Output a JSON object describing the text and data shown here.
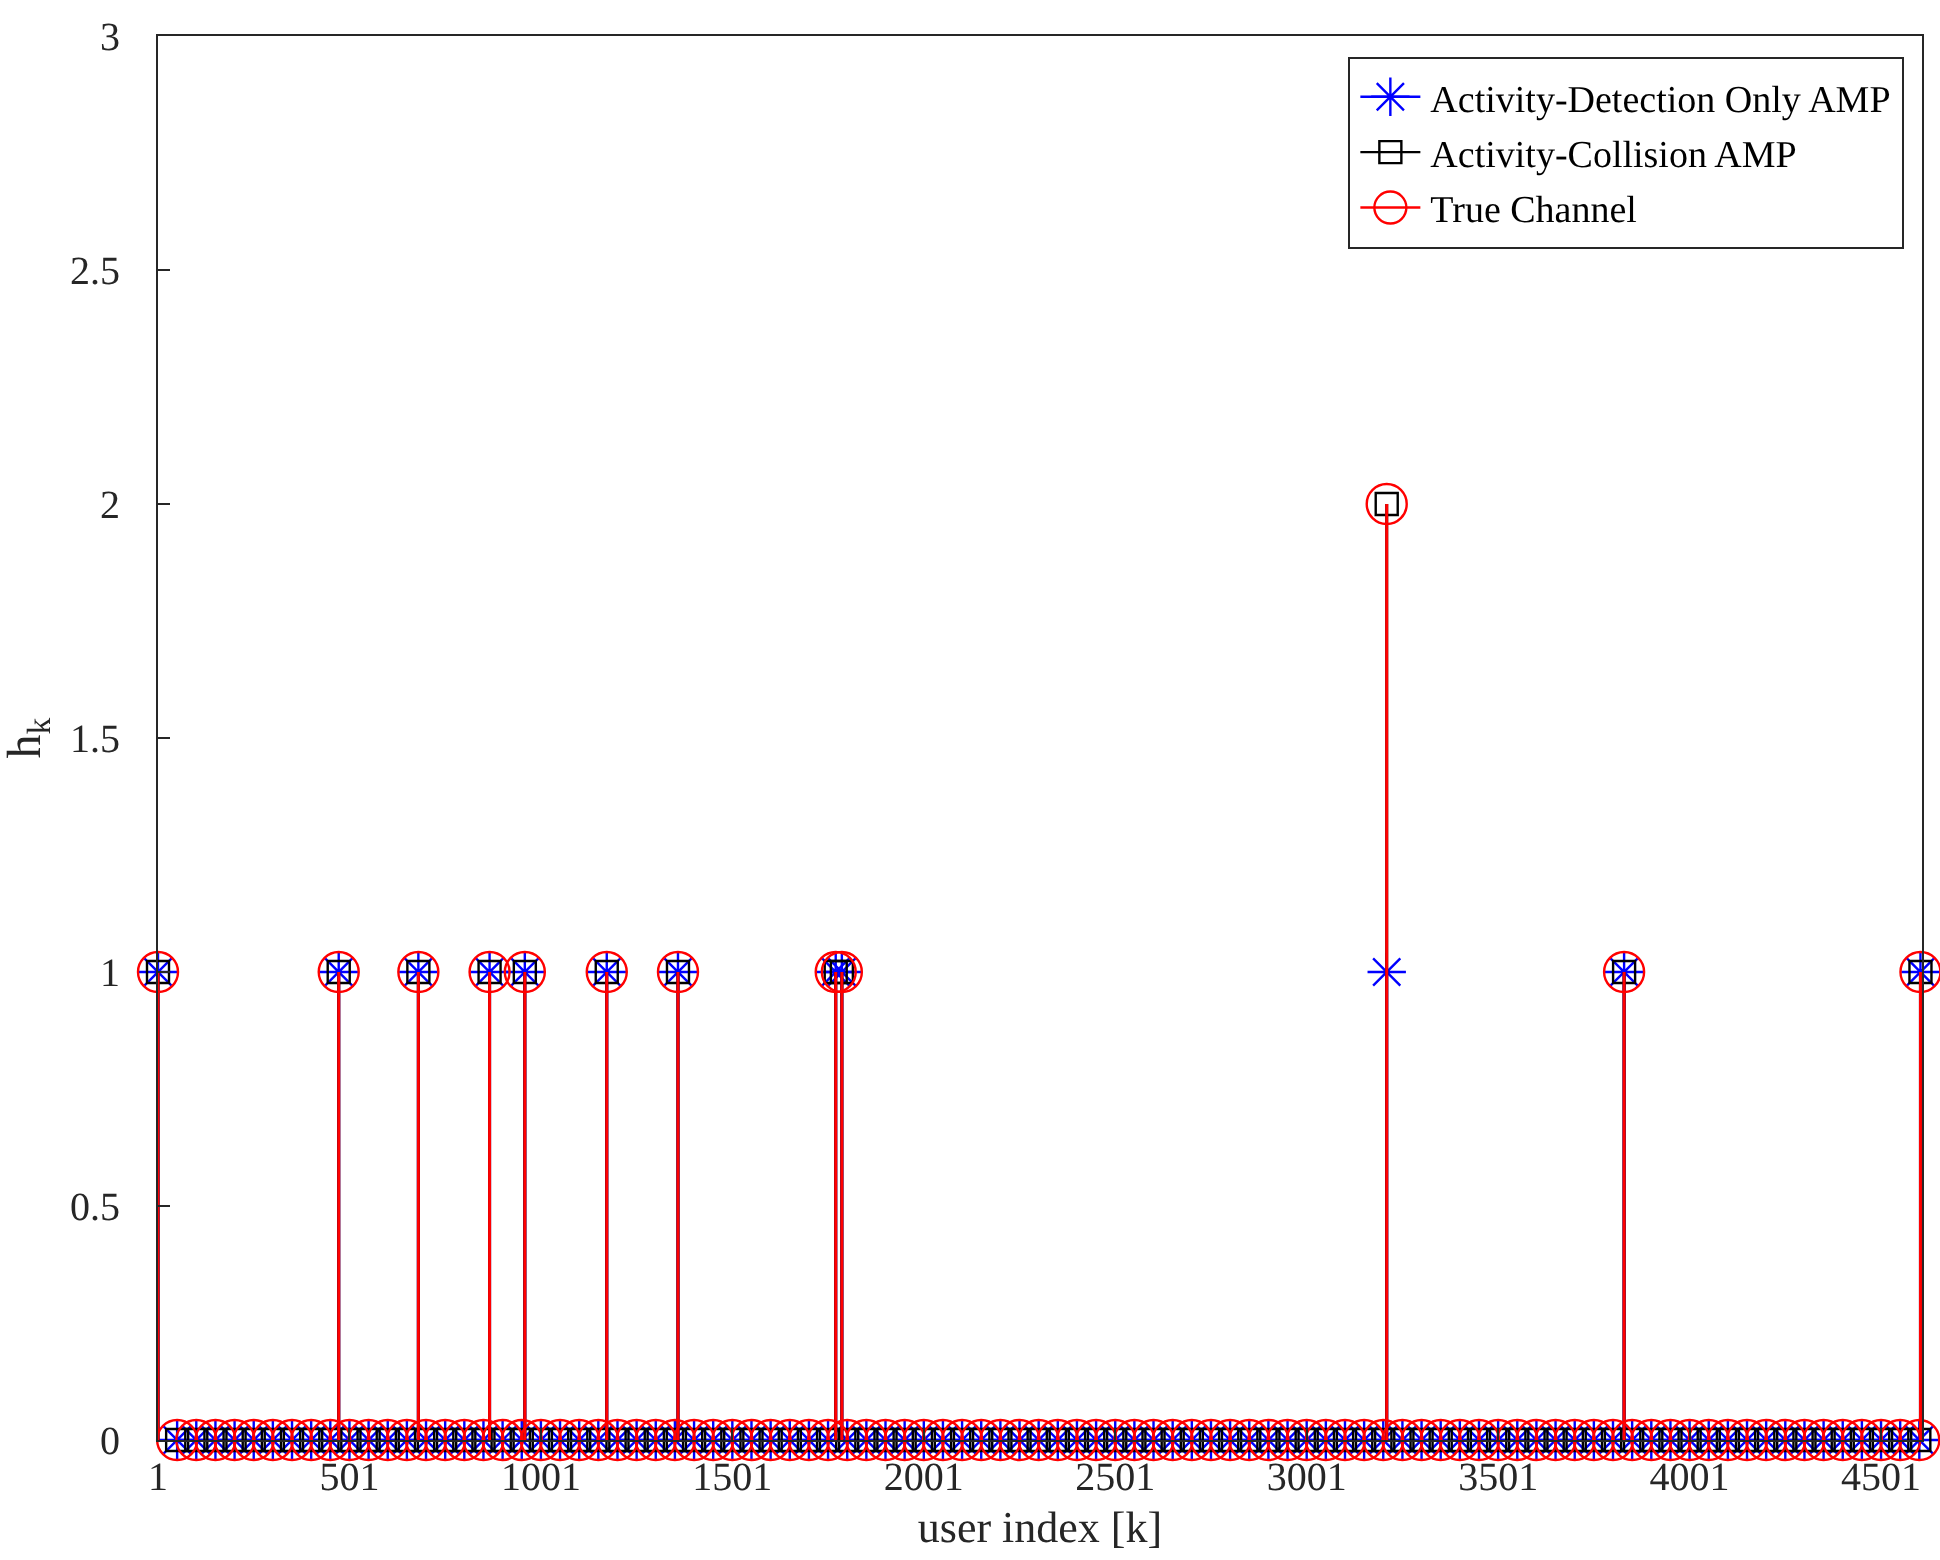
{
  "chart_data": {
    "type": "lollipop",
    "xlabel": "user index [k]",
    "ylabel": "h$_{k}$",
    "x": [
      1,
      473,
      681,
      867,
      959,
      1173,
      1359,
      1771,
      1787,
      3210,
      3830,
      4604,
      51,
      101,
      151,
      201,
      251,
      301,
      351,
      401,
      451,
      501,
      551,
      601,
      651,
      701,
      751,
      801,
      851,
      901,
      951,
      1001,
      1051,
      1101,
      1151,
      1201,
      1251,
      1301,
      1351,
      1401,
      1451,
      1501,
      1551,
      1601,
      1651,
      1701,
      1751,
      1801,
      1851,
      1901,
      1951,
      2001,
      2051,
      2101,
      2151,
      2201,
      2251,
      2301,
      2351,
      2401,
      2451,
      2501,
      2551,
      2601,
      2651,
      2701,
      2751,
      2801,
      2851,
      2901,
      2951,
      3001,
      3051,
      3101,
      3151,
      3201,
      3251,
      3301,
      3351,
      3401,
      3451,
      3501,
      3551,
      3601,
      3651,
      3701,
      3751,
      3801,
      3851,
      3901,
      3951,
      4001,
      4051,
      4101,
      4151,
      4201,
      4251,
      4301,
      4351,
      4401,
      4451,
      4501,
      4551,
      4601
    ],
    "series": [
      {
        "name": "Activity-Detection Only AMP",
        "color": "#0000ff",
        "marker": "cross",
        "values": [
          1,
          1,
          1,
          1,
          1,
          1,
          1,
          1,
          1,
          1,
          1,
          1,
          0,
          0,
          0,
          0,
          0,
          0,
          0,
          0,
          0,
          0,
          0,
          0,
          0,
          0,
          0,
          0,
          0,
          0,
          0,
          0,
          0,
          0,
          0,
          0,
          0,
          0,
          0,
          0,
          0,
          0,
          0,
          0,
          0,
          0,
          0,
          0,
          0,
          0,
          0,
          0,
          0,
          0,
          0,
          0,
          0,
          0,
          0,
          0,
          0,
          0,
          0,
          0,
          0,
          0,
          0,
          0,
          0,
          0,
          0,
          0,
          0,
          0,
          0,
          0,
          0,
          0,
          0,
          0,
          0,
          0,
          0,
          0,
          0,
          0,
          0,
          0,
          0,
          0,
          0,
          0,
          0,
          0,
          0,
          0,
          0,
          0,
          0,
          0,
          0,
          0,
          0,
          0
        ]
      },
      {
        "name": "Activity-Collision AMP",
        "color": "#000000",
        "marker": "square",
        "values": [
          1,
          1,
          1,
          1,
          1,
          1,
          1,
          1,
          1,
          2,
          1,
          1,
          0,
          0,
          0,
          0,
          0,
          0,
          0,
          0,
          0,
          0,
          0,
          0,
          0,
          0,
          0,
          0,
          0,
          0,
          0,
          0,
          0,
          0,
          0,
          0,
          0,
          0,
          0,
          0,
          0,
          0,
          0,
          0,
          0,
          0,
          0,
          0,
          0,
          0,
          0,
          0,
          0,
          0,
          0,
          0,
          0,
          0,
          0,
          0,
          0,
          0,
          0,
          0,
          0,
          0,
          0,
          0,
          0,
          0,
          0,
          0,
          0,
          0,
          0,
          0,
          0,
          0,
          0,
          0,
          0,
          0,
          0,
          0,
          0,
          0,
          0,
          0,
          0,
          0,
          0,
          0,
          0,
          0,
          0,
          0,
          0,
          0,
          0,
          0,
          0,
          0,
          0,
          0
        ]
      },
      {
        "name": "True Channel",
        "color": "#ff0000",
        "marker": "circle",
        "values": [
          1,
          1,
          1,
          1,
          1,
          1,
          1,
          1,
          1,
          2,
          1,
          1,
          0,
          0,
          0,
          0,
          0,
          0,
          0,
          0,
          0,
          0,
          0,
          0,
          0,
          0,
          0,
          0,
          0,
          0,
          0,
          0,
          0,
          0,
          0,
          0,
          0,
          0,
          0,
          0,
          0,
          0,
          0,
          0,
          0,
          0,
          0,
          0,
          0,
          0,
          0,
          0,
          0,
          0,
          0,
          0,
          0,
          0,
          0,
          0,
          0,
          0,
          0,
          0,
          0,
          0,
          0,
          0,
          0,
          0,
          0,
          0,
          0,
          0,
          0,
          0,
          0,
          0,
          0,
          0,
          0,
          0,
          0,
          0,
          0,
          0,
          0,
          0,
          0,
          0,
          0,
          0,
          0,
          0,
          0,
          0,
          0,
          0,
          0,
          0,
          0,
          0,
          0,
          0
        ]
      }
    ],
    "xlim": [
      1,
      4608
    ],
    "xticks": [
      1,
      501,
      1001,
      1501,
      2001,
      2501,
      3001,
      3501,
      4001,
      4501
    ],
    "ylim": [
      0,
      3
    ],
    "yticks": [
      0,
      0.5,
      1,
      1.5,
      2,
      2.5,
      3
    ],
    "legend": "top right"
  }
}
